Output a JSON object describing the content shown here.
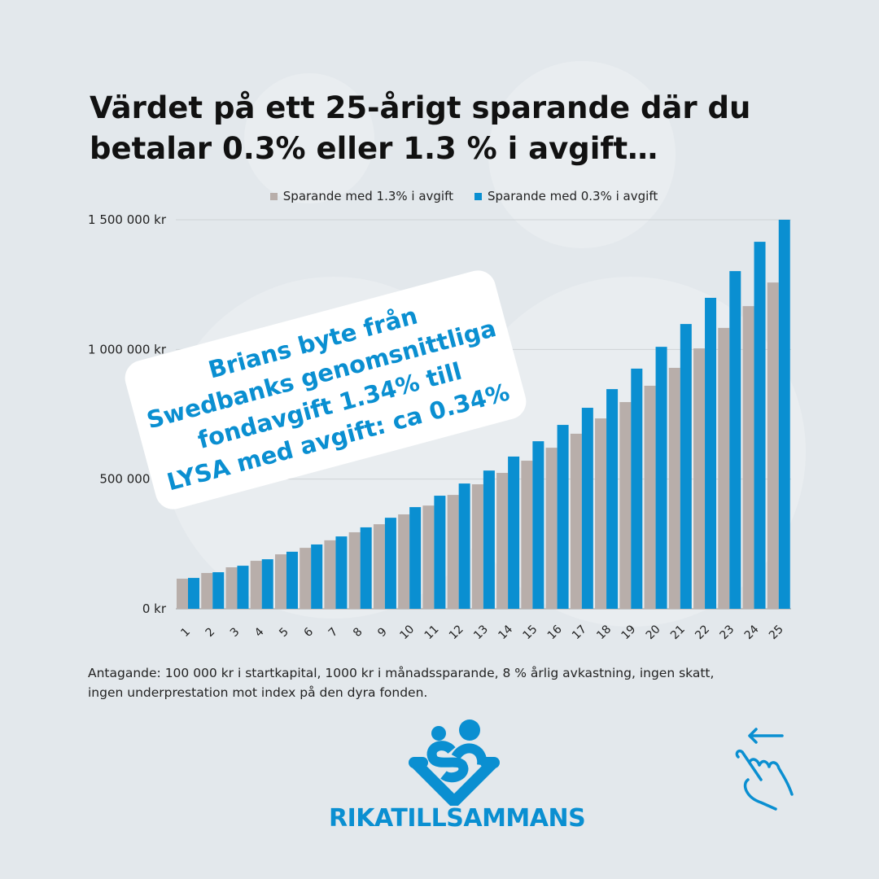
{
  "title": "Värdet på ett 25-årigt sparande där du betalar 0.3% eller 1.3 % i avgift…",
  "callout_lines": [
    "Brians byte från",
    "Swedbanks genomsnittliga",
    "fondavgift 1.34% till",
    "LYSA med avgift: ca 0.34%"
  ],
  "note_lines": [
    "Antagande: 100 000 kr i startkapital, 1000 kr i månadssparande, 8 % årlig avkastning, ingen skatt,",
    "ingen underprestation mot index på den dyra fonden."
  ],
  "brand": "RIKATILLSAMMANS",
  "icons": [
    "rikatillsammans-logo-icon",
    "swipe-left-hand-icon"
  ],
  "colors": {
    "blue": "#0a8fd1",
    "gray": "#b8aeaa",
    "background": "#e3e8ec"
  },
  "chart_data": {
    "type": "bar",
    "title": "Värdet på ett 25-årigt sparande där du betalar 0.3% eller 1.3 % i avgift…",
    "categories": [
      "1",
      "2",
      "3",
      "4",
      "5",
      "6",
      "7",
      "8",
      "9",
      "10",
      "11",
      "12",
      "13",
      "14",
      "15",
      "16",
      "17",
      "18",
      "19",
      "20",
      "21",
      "22",
      "23",
      "24",
      "25"
    ],
    "series": [
      {
        "name": "Sparande med 1.3% i avgift",
        "color": "#b8aeaa",
        "values": [
          116000,
          138000,
          160000,
          185000,
          210000,
          235000,
          264000,
          295000,
          326000,
          364000,
          398000,
          439000,
          480000,
          524000,
          571000,
          621000,
          675000,
          734000,
          797000,
          860000,
          929000,
          1004000,
          1083000,
          1167000,
          1258000
        ]
      },
      {
        "name": "Sparande med 0.3% i avgift",
        "color": "#0a8fd1",
        "values": [
          119000,
          141000,
          166000,
          191000,
          220000,
          248000,
          279000,
          314000,
          351000,
          392000,
          436000,
          483000,
          533000,
          587000,
          646000,
          709000,
          775000,
          847000,
          926000,
          1010000,
          1098000,
          1199000,
          1302000,
          1415000,
          1500000
        ]
      }
    ],
    "yticks": [
      "0 kr",
      "500 000 kr",
      "1 000 000 kr",
      "1 500 000 kr"
    ],
    "ytick_values": [
      0,
      500000,
      1000000,
      1500000
    ],
    "ylim": [
      0,
      1500000
    ],
    "grid": true,
    "legend": "top"
  }
}
